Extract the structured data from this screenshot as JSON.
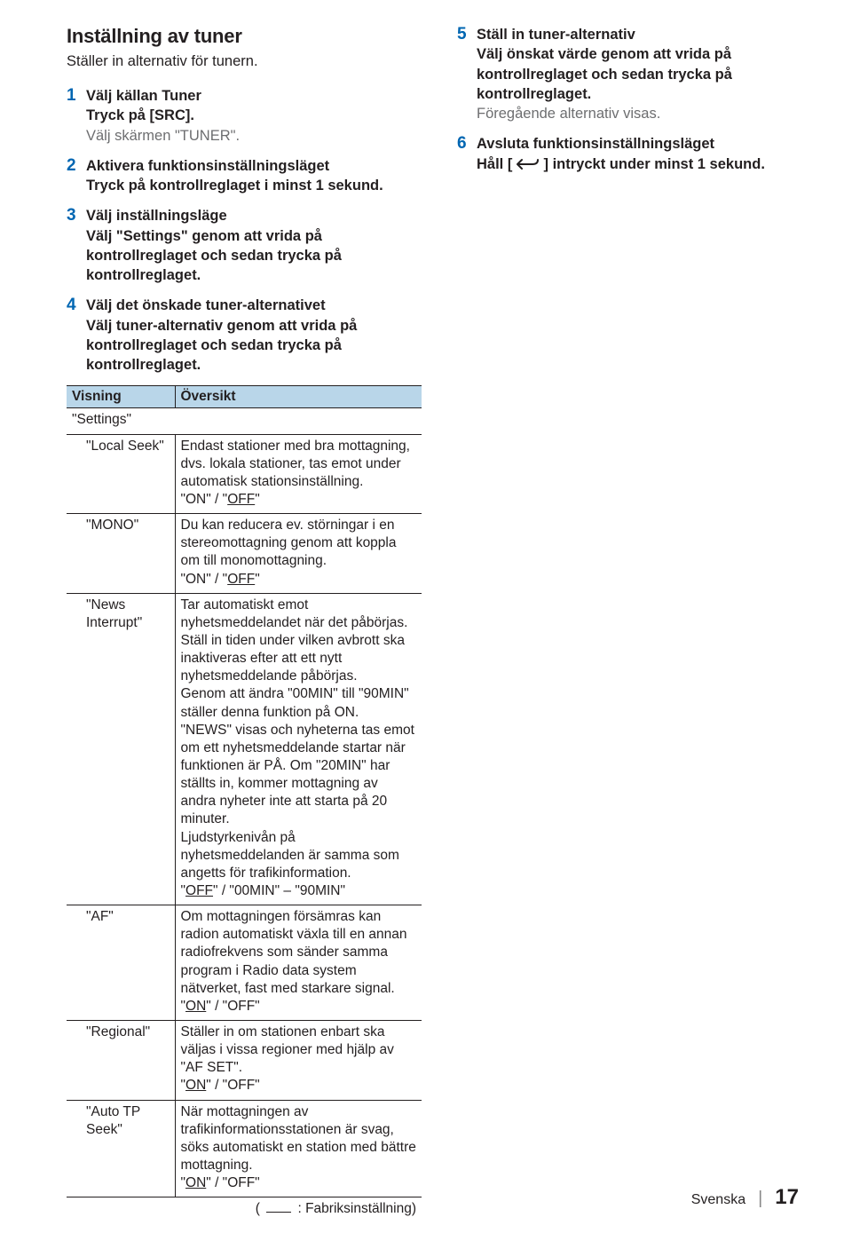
{
  "section": {
    "title": "Inställning av tuner",
    "subtitle": "Ställer in alternativ för tunern."
  },
  "steps_left": [
    {
      "num": "1",
      "head": "Välj källan Tuner",
      "lines": [
        "Tryck på [SRC]."
      ],
      "note": "Välj skärmen \"TUNER\"."
    },
    {
      "num": "2",
      "head": "Aktivera funktionsinställningsläget",
      "lines": [
        "Tryck på kontrollreglaget i minst 1 sekund."
      ]
    },
    {
      "num": "3",
      "head": "Välj inställningsläge",
      "lines": [
        "Välj \"Settings\" genom att vrida på kontrollreglaget och sedan trycka på kontrollreglaget."
      ]
    },
    {
      "num": "4",
      "head": "Välj det önskade tuner-alternativet",
      "lines": [
        "Välj tuner-alternativ genom att vrida på kontrollreglaget och sedan trycka på kontrollreglaget."
      ]
    }
  ],
  "steps_right": [
    {
      "num": "5",
      "head": "Ställ in tuner-alternativ",
      "lines": [
        "Välj önskat värde genom att vrida på kontrollreglaget och sedan trycka på kontrollreglaget."
      ],
      "note": "Föregående alternativ visas."
    },
    {
      "num": "6",
      "head": "Avsluta funktionsinställningsläget",
      "icon_line": {
        "pre": "Håll [",
        "post": "] intryckt under minst 1 sekund."
      }
    }
  ],
  "table": {
    "headers": [
      "Visning",
      "Översikt"
    ],
    "group": "\"Settings\"",
    "rows": [
      {
        "name": "\"Local Seek\"",
        "desc": "Endast stationer med bra mottagning, dvs. lokala stationer, tas emot under automatisk stationsinställning.",
        "opt_html": "\"ON\" / \"<span class='u'>OFF</span>\""
      },
      {
        "name": "\"MONO\"",
        "desc": "Du kan reducera ev. störningar i en stereomottagning genom att koppla om till monomottagning.",
        "opt_html": "\"ON\" / \"<span class='u'>OFF</span>\""
      },
      {
        "name": "\"News Interrupt\"",
        "desc": "Tar automatiskt emot nyhetsmeddelandet när det påbörjas. Ställ in tiden under vilken avbrott ska inaktiveras efter att ett nytt nyhetsmeddelande påbörjas.<br>Genom att ändra \"00MIN\" till \"90MIN\" ställer denna funktion på ON.<br>\"NEWS\" visas och nyheterna tas emot om ett nyhetsmeddelande startar när funktionen är PÅ. Om \"20MIN\" har ställts in, kommer mottagning av andra nyheter inte att starta på 20 minuter.<br>Ljudstyrkenivån på nyhetsmeddelanden är samma som angetts för trafikinformation.",
        "opt_html": "\"<span class='u'>OFF</span>\" / \"00MIN\" – \"90MIN\""
      },
      {
        "name": "\"AF\"",
        "desc": "Om mottagningen försämras kan radion automatiskt växla till en annan radiofrekvens som sänder samma program i Radio data system nätverket, fast med starkare signal.",
        "opt_html": "\"<span class='u'>ON</span>\" / \"OFF\""
      },
      {
        "name": "\"Regional\"",
        "desc": "Ställer in om stationen enbart ska väljas i vissa regioner med hjälp av \"AF SET\".",
        "opt_html": "\"<span class='u'>ON</span>\" / \"OFF\""
      },
      {
        "name": "\"Auto TP Seek\"",
        "desc": "När mottagningen av trafikinformationsstationen är svag, söks automatiskt en station med bättre mottagning.",
        "opt_html": "\"<span class='u'>ON</span>\" / \"OFF\""
      }
    ],
    "legend": ": Fabriksinställning)"
  },
  "footer": {
    "lang": "Svenska",
    "page": "17"
  },
  "colors": {
    "accent": "#0066b2",
    "header_bg": "#b9d6e9",
    "text": "#231f20",
    "muted": "#6d6e70"
  }
}
